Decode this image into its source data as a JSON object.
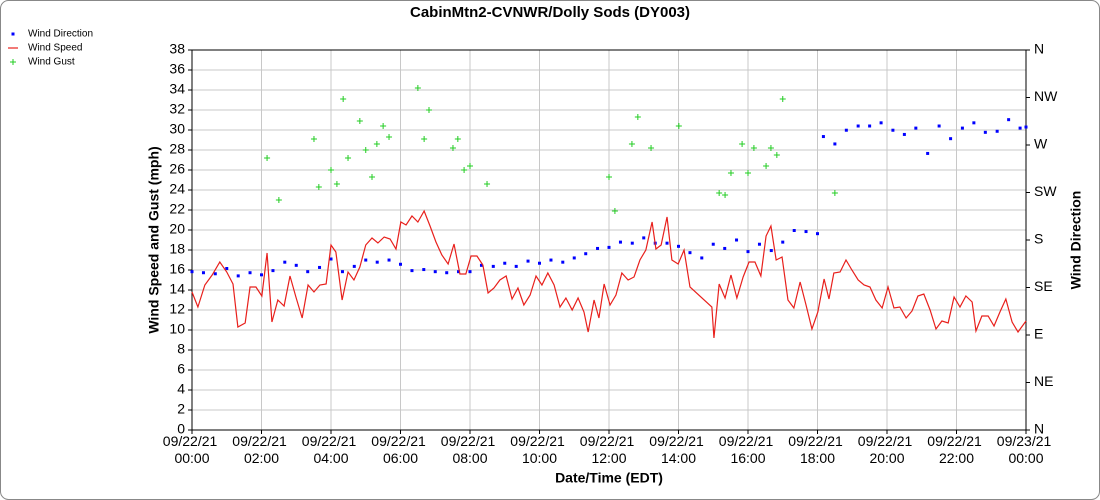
{
  "chart_data": {
    "type": "line",
    "title": "CabinMtn2-CVNWR/Dolly Sods (DY003)",
    "x_label": "Date/Time (EDT)",
    "y_label": "Wind Speed and Gust (mph)",
    "y2_label": "Wind Direction",
    "xlim": [
      0,
      24
    ],
    "xticks": [
      {
        "value": 0,
        "label": "09/22/21 00:00"
      },
      {
        "value": 2,
        "label": "09/22/21 02:00"
      },
      {
        "value": 4,
        "label": "09/22/21 04:00"
      },
      {
        "value": 6,
        "label": "09/22/21 06:00"
      },
      {
        "value": 8,
        "label": "09/22/21 08:00"
      },
      {
        "value": 10,
        "label": "09/22/21 10:00"
      },
      {
        "value": 12,
        "label": "09/22/21 12:00"
      },
      {
        "value": 14,
        "label": "09/22/21 14:00"
      },
      {
        "value": 16,
        "label": "09/22/21 16:00"
      },
      {
        "value": 18,
        "label": "09/22/21 18:00"
      },
      {
        "value": 20,
        "label": "09/22/21 20:00"
      },
      {
        "value": 22,
        "label": "09/22/21 22:00"
      },
      {
        "value": 24,
        "label": "09/23/21 00:00"
      }
    ],
    "ylim": [
      0,
      38
    ],
    "yticks": [
      0,
      2,
      4,
      6,
      8,
      10,
      12,
      14,
      16,
      18,
      20,
      22,
      24,
      26,
      28,
      30,
      32,
      34,
      36,
      38
    ],
    "y2lim": [
      0,
      360
    ],
    "y2ticks": [
      {
        "value": 0,
        "label": "N"
      },
      {
        "value": 45,
        "label": "NE"
      },
      {
        "value": 90,
        "label": "E"
      },
      {
        "value": 135,
        "label": "SE"
      },
      {
        "value": 180,
        "label": "S"
      },
      {
        "value": 225,
        "label": "SW"
      },
      {
        "value": 270,
        "label": "W"
      },
      {
        "value": 315,
        "label": "NW"
      },
      {
        "value": 360,
        "label": "N"
      }
    ],
    "grid": true,
    "legend": "top-left",
    "series": [
      {
        "name": "Wind Direction",
        "color": "#0000ff",
        "marker": "dot",
        "axis": "y2",
        "x": [
          0,
          0.33,
          0.67,
          1.0,
          1.33,
          1.67,
          2.0,
          2.33,
          2.67,
          3.0,
          3.33,
          3.67,
          4.0,
          4.33,
          4.67,
          5.0,
          5.33,
          5.67,
          6.0,
          6.33,
          6.67,
          7.0,
          7.33,
          7.67,
          8.0,
          8.33,
          8.67,
          9.0,
          9.33,
          9.67,
          10.0,
          10.33,
          10.67,
          11.0,
          11.33,
          11.67,
          12.0,
          12.33,
          12.67,
          13.0,
          13.33,
          13.67,
          14.0,
          14.33,
          14.67,
          15.0,
          15.33,
          15.67,
          16.0,
          16.33,
          16.67,
          17.0,
          17.33,
          17.67,
          18.0,
          18.17,
          18.5,
          18.83,
          19.17,
          19.5,
          19.83,
          20.17,
          20.5,
          20.83,
          21.17,
          21.5,
          21.83,
          22.17,
          22.5,
          22.83,
          23.17,
          23.5,
          23.83,
          24.0
        ],
        "values": [
          150,
          149,
          148,
          153,
          146,
          149,
          147,
          151,
          159,
          156,
          150,
          154,
          162,
          150,
          155,
          161,
          159,
          161,
          157,
          151,
          152,
          150,
          149,
          150,
          150,
          156,
          155,
          158,
          155,
          160,
          158,
          161,
          159,
          163,
          167,
          172,
          173,
          178,
          177,
          182,
          177,
          177,
          174,
          168,
          163,
          176,
          172,
          180,
          169,
          176,
          170,
          178,
          189,
          188,
          186,
          278,
          271,
          284,
          288,
          288,
          291,
          284,
          280,
          286,
          262,
          288,
          276,
          286,
          291,
          282,
          283,
          294,
          286,
          287
        ]
      },
      {
        "name": "Wind Speed",
        "color": "#e8201c",
        "marker": "line",
        "axis": "y",
        "x": [
          0,
          0.17,
          0.37,
          0.58,
          0.8,
          1.0,
          1.18,
          1.32,
          1.53,
          1.67,
          1.84,
          2.01,
          2.16,
          2.3,
          2.47,
          2.65,
          2.82,
          2.99,
          3.17,
          3.34,
          3.51,
          3.68,
          3.86,
          4.0,
          4.14,
          4.32,
          4.49,
          4.66,
          4.83,
          5.0,
          5.18,
          5.35,
          5.53,
          5.7,
          5.87,
          6.01,
          6.16,
          6.33,
          6.5,
          6.68,
          6.85,
          7.02,
          7.19,
          7.37,
          7.54,
          7.71,
          7.88,
          8.03,
          8.2,
          8.37,
          8.52,
          8.69,
          8.86,
          9.04,
          9.21,
          9.38,
          9.55,
          9.73,
          9.9,
          10.07,
          10.24,
          10.42,
          10.59,
          10.76,
          10.94,
          11.11,
          11.28,
          11.4,
          11.57,
          11.71,
          11.86,
          12.03,
          12.2,
          12.37,
          12.55,
          12.72,
          12.89,
          13.06,
          13.24,
          13.35,
          13.5,
          13.67,
          13.81,
          13.99,
          14.16,
          14.33,
          14.96,
          15.02,
          15.17,
          15.34,
          15.51,
          15.68,
          15.86,
          16.03,
          16.2,
          16.37,
          16.52,
          16.66,
          16.81,
          16.98,
          17.15,
          17.32,
          17.5,
          17.67,
          17.84,
          18.01,
          18.19,
          18.33,
          18.47,
          18.65,
          18.82,
          18.99,
          19.17,
          19.34,
          19.51,
          19.68,
          19.86,
          20.03,
          20.2,
          20.37,
          20.55,
          20.72,
          20.89,
          21.06,
          21.24,
          21.41,
          21.58,
          21.76,
          21.93,
          22.1,
          22.27,
          22.45,
          22.56,
          22.73,
          22.91,
          23.08,
          23.25,
          23.42,
          23.6,
          23.77,
          24.0
        ],
        "values": [
          13.8,
          12.3,
          14.5,
          15.5,
          16.8,
          15.8,
          14.6,
          10.3,
          10.7,
          14.3,
          14.3,
          13.4,
          17.7,
          10.8,
          13.0,
          12.4,
          15.4,
          13.3,
          11.2,
          14.5,
          13.8,
          14.5,
          14.6,
          18.5,
          17.8,
          13.0,
          15.8,
          15.0,
          16.3,
          18.5,
          19.2,
          18.7,
          19.3,
          19.1,
          18.1,
          20.8,
          20.5,
          21.4,
          20.8,
          21.9,
          20.4,
          18.8,
          17.5,
          16.6,
          18.6,
          15.6,
          15.6,
          17.4,
          17.4,
          16.5,
          13.7,
          14.2,
          15.0,
          15.4,
          13.1,
          14.2,
          12.5,
          13.5,
          15.4,
          14.5,
          15.7,
          14.5,
          12.3,
          13.2,
          12.0,
          13.2,
          11.8,
          9.8,
          13.0,
          11.2,
          14.6,
          12.5,
          13.5,
          15.7,
          15.0,
          15.3,
          17.0,
          18.0,
          20.8,
          18.1,
          18.5,
          21.3,
          17.0,
          16.6,
          18.0,
          14.3,
          12.3,
          9.2,
          14.6,
          13.2,
          15.5,
          13.2,
          15.3,
          16.8,
          16.8,
          15.4,
          19.4,
          20.4,
          17.0,
          17.3,
          13.0,
          12.2,
          14.8,
          12.5,
          10.1,
          11.8,
          15.1,
          13.1,
          15.7,
          15.8,
          17.0,
          16.0,
          15.0,
          14.5,
          14.3,
          13.0,
          12.2,
          14.3,
          12.2,
          12.3,
          11.2,
          11.9,
          13.4,
          13.6,
          12.0,
          10.1,
          10.9,
          10.7,
          13.3,
          12.3,
          13.4,
          12.8,
          9.9,
          11.4,
          11.4,
          10.4,
          11.8,
          13.1,
          10.8,
          9.8,
          10.9
        ]
      },
      {
        "name": "Wind Gust",
        "color": "#22cc22",
        "marker": "plus",
        "axis": "y",
        "x": [
          2.16,
          2.5,
          3.51,
          3.65,
          4.0,
          4.17,
          4.35,
          4.49,
          4.83,
          5.0,
          5.18,
          5.32,
          5.5,
          5.67,
          6.5,
          6.68,
          6.82,
          7.51,
          7.65,
          7.83,
          8.0,
          8.49,
          12.0,
          12.17,
          12.66,
          12.83,
          13.21,
          14.01,
          15.17,
          15.34,
          15.51,
          15.83,
          16.0,
          16.17,
          16.52,
          16.66,
          16.83,
          17.0,
          18.5
        ],
        "values": [
          27.2,
          23.0,
          29.1,
          24.3,
          26.0,
          24.6,
          33.1,
          27.2,
          30.9,
          28.0,
          25.3,
          28.6,
          30.4,
          29.3,
          34.2,
          29.1,
          32.0,
          28.2,
          29.1,
          26.0,
          26.4,
          24.6,
          25.3,
          21.9,
          28.6,
          31.3,
          28.2,
          30.4,
          23.7,
          23.5,
          25.7,
          28.6,
          25.7,
          28.2,
          26.4,
          28.2,
          27.5,
          33.1,
          23.7
        ]
      }
    ]
  }
}
